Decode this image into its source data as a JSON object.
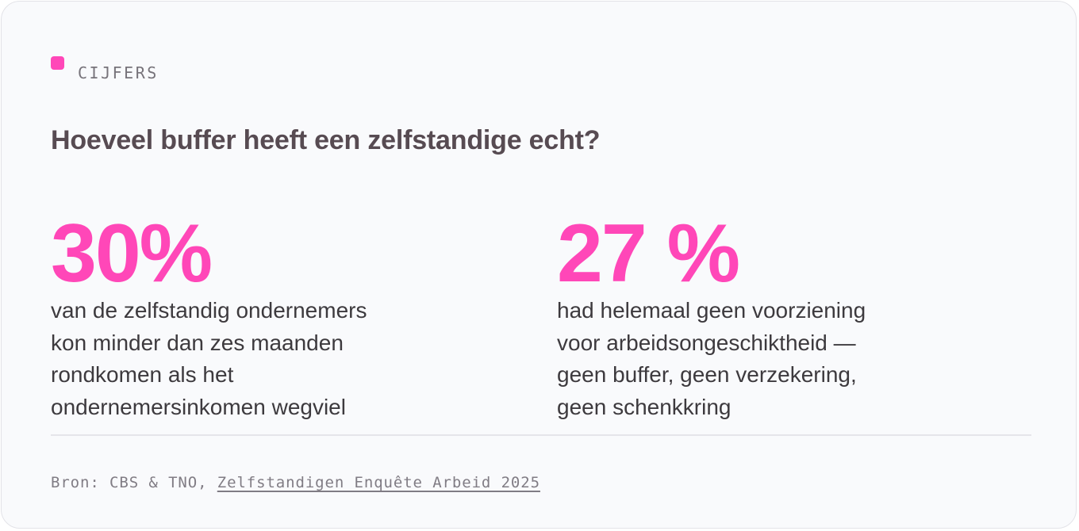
{
  "card": {
    "eyebrow": "CIJFERS",
    "headline": "Hoeveel buffer heeft een zelfstandige echt?",
    "accent_color": "#ff47b8"
  },
  "stats": [
    {
      "value": "30%",
      "lines": [
        "van de zelfstandig ondernemers",
        "kon minder dan zes maanden",
        "rondkomen als het",
        "ondernemersinkomen wegviel"
      ]
    },
    {
      "value": "27 %",
      "lines": [
        "had helemaal geen voorziening",
        "voor arbeidsongeschiktheid —",
        "geen buffer, geen verzekering,",
        "geen schenkkring"
      ]
    }
  ],
  "source": {
    "prefix": "Bron: CBS & TNO, ",
    "link_text": "Zelfstandigen Enquête Arbeid 2025"
  }
}
